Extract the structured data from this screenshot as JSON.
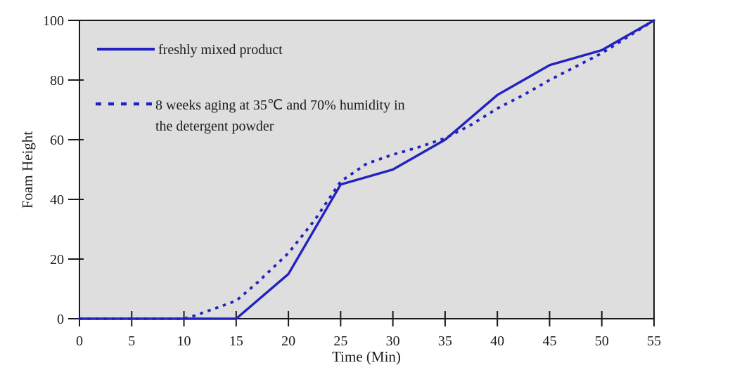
{
  "figure": {
    "background": "#ffffff"
  },
  "chart_data": {
    "type": "line",
    "title": "",
    "xlabel": "Time (Min)",
    "ylabel": "Foam Height",
    "xlim": [
      0,
      55
    ],
    "ylim": [
      0,
      100
    ],
    "x_ticks": [
      0,
      5,
      10,
      15,
      20,
      25,
      30,
      35,
      40,
      45,
      50,
      55
    ],
    "y_ticks": [
      0,
      20,
      40,
      60,
      80,
      100
    ],
    "grid": false,
    "legend_position": "inside-top-left",
    "colors": {
      "line": "#2222c0",
      "plot_bg": "#dedede",
      "frame": "#1a1a1a",
      "text": "#1c1c1c"
    },
    "series": [
      {
        "name": "freshly mixed product",
        "line_style": "solid",
        "points": [
          [
            0,
            0
          ],
          [
            5,
            0
          ],
          [
            10,
            0
          ],
          [
            15,
            0
          ],
          [
            20,
            15
          ],
          [
            25,
            45
          ],
          [
            30,
            50
          ],
          [
            35,
            60
          ],
          [
            40,
            75
          ],
          [
            45,
            85
          ],
          [
            50,
            90
          ],
          [
            55,
            100
          ]
        ]
      },
      {
        "name": "8 weeks aging at 35℃ and 70% humidity in the detergent powder",
        "line_style": "dashed",
        "points": [
          [
            0,
            0
          ],
          [
            5,
            0
          ],
          [
            10,
            0
          ],
          [
            11,
            1
          ],
          [
            13,
            3.5
          ],
          [
            15,
            6
          ],
          [
            17,
            12
          ],
          [
            20,
            22
          ],
          [
            22.5,
            33
          ],
          [
            25,
            46
          ],
          [
            27.5,
            52
          ],
          [
            30,
            55
          ],
          [
            32.5,
            57.5
          ],
          [
            35,
            60.5
          ],
          [
            37.5,
            65
          ],
          [
            40,
            70.5
          ],
          [
            42.5,
            75
          ],
          [
            45,
            80
          ],
          [
            47.5,
            84.5
          ],
          [
            50,
            89
          ],
          [
            55,
            100
          ]
        ]
      }
    ],
    "legend": [
      {
        "style": "solid",
        "label": "freshly mixed product"
      },
      {
        "style": "dashed",
        "label_line1": "8 weeks aging at 35℃ and 70% humidity in",
        "label_line2": "the detergent powder"
      }
    ]
  }
}
